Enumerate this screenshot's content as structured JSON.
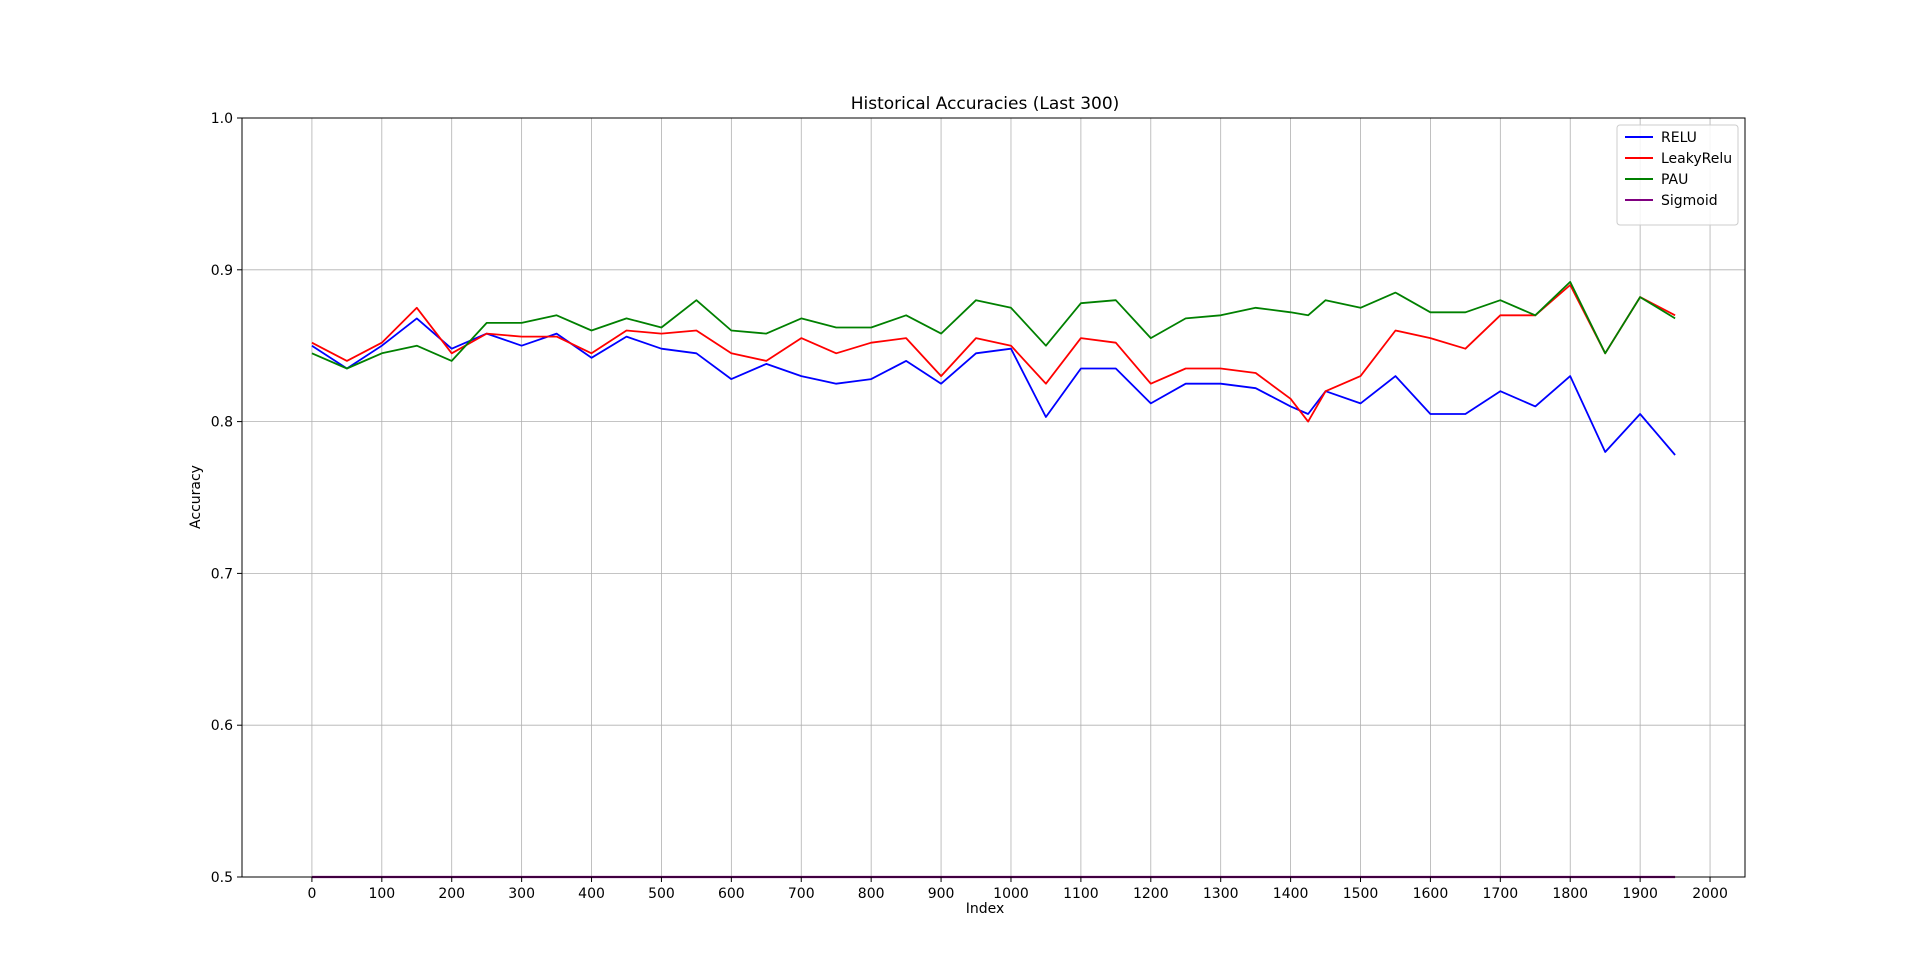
{
  "chart_data": {
    "type": "line",
    "title": "Historical Accuracies (Last 300)",
    "xlabel": "Index",
    "ylabel": "Accuracy",
    "xlim": [
      -100,
      2050
    ],
    "ylim": [
      0.5,
      1.0
    ],
    "xticks": [
      "0",
      "100",
      "200",
      "300",
      "400",
      "500",
      "600",
      "700",
      "800",
      "900",
      "1000",
      "1100",
      "1200",
      "1300",
      "1400",
      "1500",
      "1600",
      "1700",
      "1800",
      "1900",
      "2000"
    ],
    "yticks": [
      "0.5",
      "0.6",
      "0.7",
      "0.8",
      "0.9",
      "1.0"
    ],
    "grid": true,
    "legend": "top-right",
    "x": [
      0,
      50,
      100,
      150,
      200,
      250,
      300,
      350,
      400,
      450,
      500,
      550,
      600,
      650,
      700,
      750,
      800,
      850,
      900,
      950,
      1000,
      1050,
      1100,
      1150,
      1200,
      1250,
      1300,
      1350,
      1400,
      1425,
      1450,
      1500,
      1550,
      1600,
      1650,
      1700,
      1750,
      1800,
      1850,
      1900,
      1950
    ],
    "series": [
      {
        "name": "RELU",
        "color": "#0000ff",
        "values": [
          0.85,
          0.835,
          0.85,
          0.868,
          0.848,
          0.858,
          0.85,
          0.858,
          0.842,
          0.856,
          0.848,
          0.845,
          0.828,
          0.838,
          0.83,
          0.825,
          0.828,
          0.84,
          0.825,
          0.845,
          0.848,
          0.803,
          0.835,
          0.835,
          0.812,
          0.825,
          0.825,
          0.822,
          0.81,
          0.805,
          0.82,
          0.812,
          0.83,
          0.805,
          0.805,
          0.82,
          0.81,
          0.83,
          0.78,
          0.805,
          0.778
        ]
      },
      {
        "name": "LeakyRelu",
        "color": "#ff0000",
        "values": [
          0.852,
          0.84,
          0.852,
          0.875,
          0.845,
          0.858,
          0.856,
          0.856,
          0.845,
          0.86,
          0.858,
          0.86,
          0.845,
          0.84,
          0.855,
          0.845,
          0.852,
          0.855,
          0.83,
          0.855,
          0.85,
          0.825,
          0.855,
          0.852,
          0.825,
          0.835,
          0.835,
          0.832,
          0.815,
          0.8,
          0.82,
          0.83,
          0.86,
          0.855,
          0.848,
          0.87,
          0.87,
          0.89,
          0.845,
          0.882,
          0.87
        ]
      },
      {
        "name": "PAU",
        "color": "#008000",
        "values": [
          0.845,
          0.835,
          0.845,
          0.85,
          0.84,
          0.865,
          0.865,
          0.87,
          0.86,
          0.868,
          0.862,
          0.88,
          0.86,
          0.858,
          0.868,
          0.862,
          0.862,
          0.87,
          0.858,
          0.88,
          0.875,
          0.85,
          0.878,
          0.88,
          0.855,
          0.868,
          0.87,
          0.875,
          0.872,
          0.87,
          0.88,
          0.875,
          0.885,
          0.872,
          0.872,
          0.88,
          0.87,
          0.892,
          0.845,
          0.882,
          0.868
        ]
      },
      {
        "name": "Sigmoid",
        "color": "#800080",
        "values": [
          0.5,
          0.5,
          0.5,
          0.5,
          0.5,
          0.5,
          0.5,
          0.5,
          0.5,
          0.5,
          0.5,
          0.5,
          0.5,
          0.5,
          0.5,
          0.5,
          0.5,
          0.5,
          0.5,
          0.5,
          0.5,
          0.5,
          0.5,
          0.5,
          0.5,
          0.5,
          0.5,
          0.5,
          0.5,
          0.5,
          0.5,
          0.5,
          0.5,
          0.5,
          0.5,
          0.5,
          0.5,
          0.5,
          0.5,
          0.5,
          0.5
        ]
      }
    ]
  }
}
